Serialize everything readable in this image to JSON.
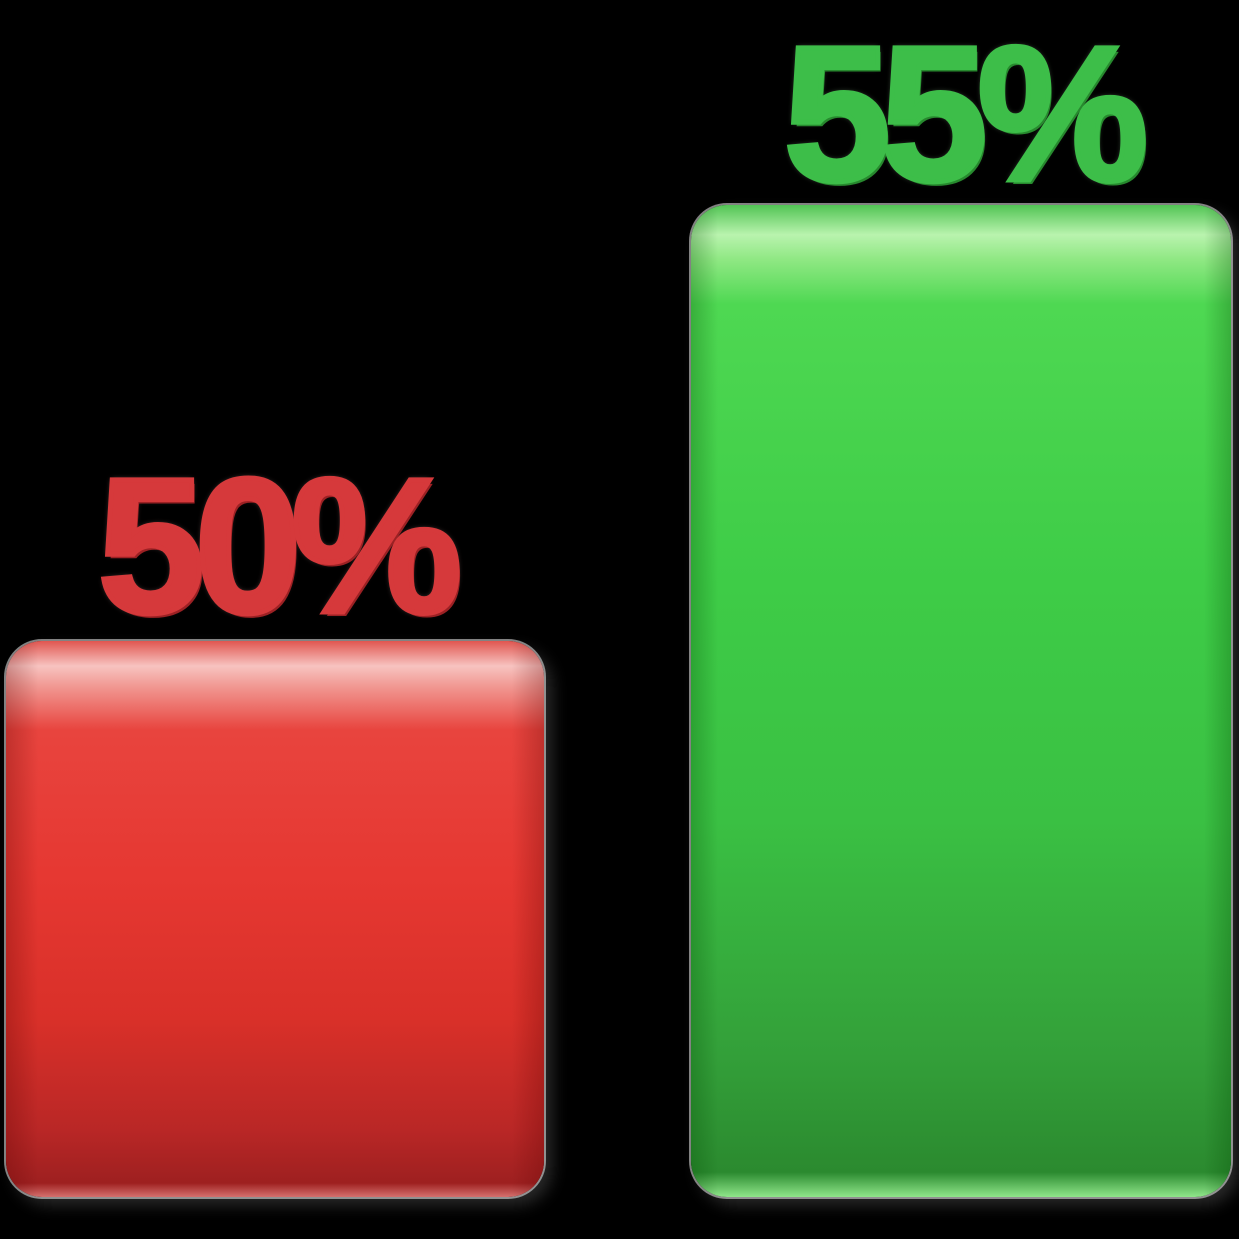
{
  "chart_data": {
    "type": "bar",
    "categories": [
      "red",
      "green"
    ],
    "values": [
      50,
      55
    ],
    "value_labels": [
      "50%",
      "55%"
    ],
    "series_colors": [
      "#E63832",
      "#3ECC47"
    ],
    "title": "",
    "xlabel": "",
    "ylabel": "",
    "legend": false,
    "grid": false,
    "background": "#000000",
    "style": "3d-emoji-rounded-bars, bottom-aligned baseline, labels above bars"
  },
  "bars": {
    "red": {
      "label": "50%",
      "value": 50,
      "fill_color": "#E63832",
      "highlight_color": "#F7C3C0",
      "shadow_color": "#9E2020",
      "label_color": "#D6393B"
    },
    "green": {
      "label": "55%",
      "value": 55,
      "fill_color": "#3ECC47",
      "highlight_color": "#B9F3AE",
      "shadow_color": "#2B8A2F",
      "label_color": "#3DBE49"
    }
  }
}
